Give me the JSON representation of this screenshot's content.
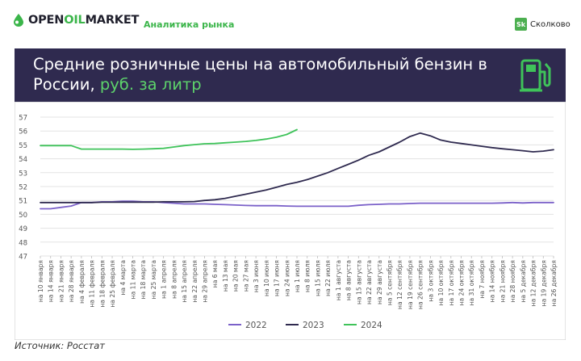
{
  "header": {
    "logo_prefix": "OPEN",
    "logo_accent": "OIL",
    "logo_suffix": "MARKET",
    "tagline": "Аналитика рынка",
    "partner_badge": "Sk",
    "partner_name": "Сколково"
  },
  "banner": {
    "title_main": "Средние розничные цены на автомобильный бензин в России, ",
    "title_unit": "руб. за литр",
    "icon": "fuel-pump-icon"
  },
  "source": "Источник: Росстат",
  "colors": {
    "banner_bg": "#2f2a4f",
    "brand_green": "#3bb54a",
    "series_2022": "#7b61c9",
    "series_2023": "#2f2a4f",
    "series_2024": "#3fc35a"
  },
  "chart_data": {
    "type": "line",
    "title": "Средние розничные цены на автомобильный бензин в России, руб. за литр",
    "xlabel": "",
    "ylabel": "",
    "ylim": [
      47,
      57
    ],
    "yticks": [
      47,
      48,
      49,
      50,
      51,
      52,
      53,
      54,
      55,
      56,
      57
    ],
    "grid": true,
    "legend_position": "bottom",
    "categories": [
      "на 10 января",
      "на 14 января",
      "на 21 января",
      "на 28 января",
      "на 4 февраля",
      "на 11 февраля",
      "на 18 февраля",
      "на 25 февраля",
      "на 4 марта",
      "на 11 марта",
      "на 18 марта",
      "на 25 марта",
      "на 1 апреля",
      "на 8 апреля",
      "на 15 апреля",
      "на 22 апреля",
      "на 29 апреля",
      "на 6 мая",
      "на 13 мая",
      "на 20 мая",
      "на 27 мая",
      "на 3 июня",
      "на 10 июня",
      "на 17 июня",
      "на 24 июня",
      "на 1 июля",
      "на 8 июля",
      "на 15 июля",
      "на 22 июля",
      "на 1 августа",
      "на 8 августа",
      "на 15 августа",
      "на 22 августа",
      "на 29 августа",
      "на 5 сентября",
      "на 12 сентября",
      "на 19 сентября",
      "на 26 сентября",
      "на 3 октября",
      "на 10 октября",
      "на 17 октября",
      "на 24 октября",
      "на 31 октября",
      "на 7 ноября",
      "на 14 ноября",
      "на 21 ноября",
      "на 28 ноября",
      "на 5 декабря",
      "на 12 декабря",
      "на 19 декабря",
      "на 26 декабря"
    ],
    "series": [
      {
        "name": "2022",
        "color": "#7b61c9",
        "values": [
          50.4,
          50.4,
          50.5,
          50.6,
          50.85,
          50.85,
          50.9,
          50.9,
          50.95,
          50.95,
          50.9,
          50.9,
          50.85,
          50.8,
          50.75,
          50.75,
          50.75,
          50.72,
          50.7,
          50.67,
          50.64,
          50.62,
          50.62,
          50.62,
          50.6,
          50.58,
          50.58,
          50.58,
          50.58,
          50.58,
          50.58,
          50.65,
          50.7,
          50.72,
          50.75,
          50.75,
          50.78,
          50.8,
          50.8,
          50.8,
          50.8,
          50.8,
          50.8,
          50.8,
          50.8,
          50.82,
          50.85,
          50.82,
          50.85,
          50.85,
          50.85
        ]
      },
      {
        "name": "2023",
        "color": "#2f2a4f",
        "values": [
          50.85,
          50.85,
          50.85,
          50.85,
          50.85,
          50.85,
          50.87,
          50.87,
          50.88,
          50.88,
          50.88,
          50.88,
          50.9,
          50.9,
          50.9,
          50.92,
          51.0,
          51.05,
          51.15,
          51.3,
          51.45,
          51.6,
          51.75,
          51.95,
          52.15,
          52.3,
          52.5,
          52.75,
          53.0,
          53.3,
          53.6,
          53.9,
          54.25,
          54.5,
          54.85,
          55.2,
          55.6,
          55.85,
          55.65,
          55.35,
          55.2,
          55.1,
          55.0,
          54.9,
          54.8,
          54.72,
          54.65,
          54.58,
          54.5,
          54.55,
          54.65
        ]
      },
      {
        "name": "2024",
        "color": "#3fc35a",
        "values": [
          54.95,
          54.95,
          54.95,
          54.95,
          54.7,
          54.7,
          54.7,
          54.7,
          54.7,
          54.68,
          54.7,
          54.72,
          54.75,
          54.85,
          54.95,
          55.02,
          55.08,
          55.1,
          55.15,
          55.2,
          55.25,
          55.32,
          55.42,
          55.55,
          55.75,
          56.1,
          null,
          null,
          null,
          null,
          null,
          null,
          null,
          null,
          null,
          null,
          null,
          null,
          null,
          null,
          null,
          null,
          null,
          null,
          null,
          null,
          null,
          null,
          null,
          null,
          null
        ]
      }
    ]
  }
}
